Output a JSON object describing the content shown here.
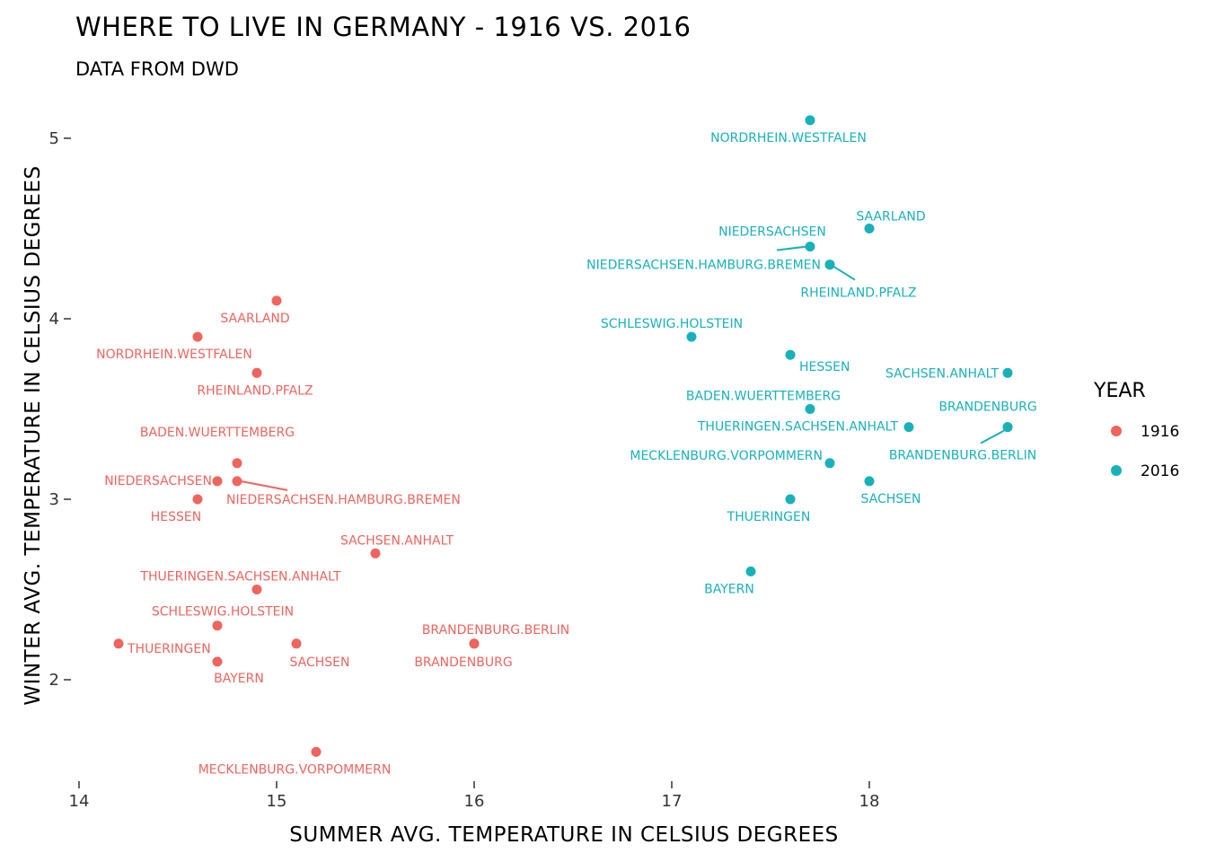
{
  "chart_data": {
    "type": "scatter",
    "title": "WHERE TO LIVE IN GERMANY - 1916 VS. 2016",
    "subtitle": "DATA FROM DWD",
    "xlabel": "SUMMER AVG. TEMPERATURE IN CELSIUS DEGREES",
    "ylabel": "WINTER AVG. TEMPERATURE IN CELSIUS DEGREES",
    "xlim": [
      14,
      18.85
    ],
    "ylim": [
      1.45,
      5.2
    ],
    "x_ticks": [
      14,
      15,
      16,
      17,
      18
    ],
    "y_ticks": [
      2,
      3,
      4,
      5
    ],
    "grid": false,
    "legend": {
      "title": "YEAR",
      "position": "right"
    },
    "series": [
      {
        "name": "1916",
        "color": "#F0645E",
        "points": [
          {
            "label": "SAARLAND",
            "x": 15.0,
            "y": 4.1
          },
          {
            "label": "NORDRHEIN.WESTFALEN",
            "x": 14.6,
            "y": 3.9
          },
          {
            "label": "RHEINLAND.PFALZ",
            "x": 14.9,
            "y": 3.7
          },
          {
            "label": "BADEN.WUERTTEMBERG",
            "x": 14.8,
            "y": 3.2
          },
          {
            "label": "NIEDERSACHSEN",
            "x": 14.7,
            "y": 3.1
          },
          {
            "label": "NIEDERSACHSEN.HAMBURG.BREMEN",
            "x": 14.8,
            "y": 3.1
          },
          {
            "label": "HESSEN",
            "x": 14.6,
            "y": 3.0
          },
          {
            "label": "SACHSEN.ANHALT",
            "x": 15.5,
            "y": 2.7
          },
          {
            "label": "THUERINGEN.SACHSEN.ANHALT",
            "x": 14.9,
            "y": 2.5
          },
          {
            "label": "SCHLESWIG.HOLSTEIN",
            "x": 14.7,
            "y": 2.3
          },
          {
            "label": "THUERINGEN",
            "x": 14.2,
            "y": 2.2
          },
          {
            "label": "SACHSEN",
            "x": 15.1,
            "y": 2.2
          },
          {
            "label": "BRANDENBURG.BERLIN",
            "x": 16.0,
            "y": 2.2
          },
          {
            "label": "BRANDENBURG",
            "x": 16.0,
            "y": 2.2
          },
          {
            "label": "BAYERN",
            "x": 14.7,
            "y": 2.1
          },
          {
            "label": "MECKLENBURG.VORPOMMERN",
            "x": 15.2,
            "y": 1.6
          }
        ]
      },
      {
        "name": "2016",
        "color": "#17B2B9",
        "points": [
          {
            "label": "NORDRHEIN.WESTFALEN",
            "x": 17.7,
            "y": 5.1
          },
          {
            "label": "SAARLAND",
            "x": 18.0,
            "y": 4.5
          },
          {
            "label": "NIEDERSACHSEN",
            "x": 17.7,
            "y": 4.4
          },
          {
            "label": "NIEDERSACHSEN.HAMBURG.BREMEN",
            "x": 17.8,
            "y": 4.3
          },
          {
            "label": "RHEINLAND.PFALZ",
            "x": 17.8,
            "y": 4.3
          },
          {
            "label": "SCHLESWIG.HOLSTEIN",
            "x": 17.1,
            "y": 3.9
          },
          {
            "label": "HESSEN",
            "x": 17.6,
            "y": 3.8
          },
          {
            "label": "SACHSEN.ANHALT",
            "x": 18.7,
            "y": 3.7
          },
          {
            "label": "BADEN.WUERTTEMBERG",
            "x": 17.7,
            "y": 3.5
          },
          {
            "label": "THUERINGEN.SACHSEN.ANHALT",
            "x": 18.2,
            "y": 3.4
          },
          {
            "label": "BRANDENBURG",
            "x": 18.7,
            "y": 3.4
          },
          {
            "label": "BRANDENBURG.BERLIN",
            "x": 18.7,
            "y": 3.4
          },
          {
            "label": "MECKLENBURG.VORPOMMERN",
            "x": 17.8,
            "y": 3.2
          },
          {
            "label": "SACHSEN",
            "x": 18.0,
            "y": 3.1
          },
          {
            "label": "THUERINGEN",
            "x": 17.6,
            "y": 3.0
          },
          {
            "label": "BAYERN",
            "x": 17.4,
            "y": 2.6
          }
        ]
      }
    ]
  }
}
